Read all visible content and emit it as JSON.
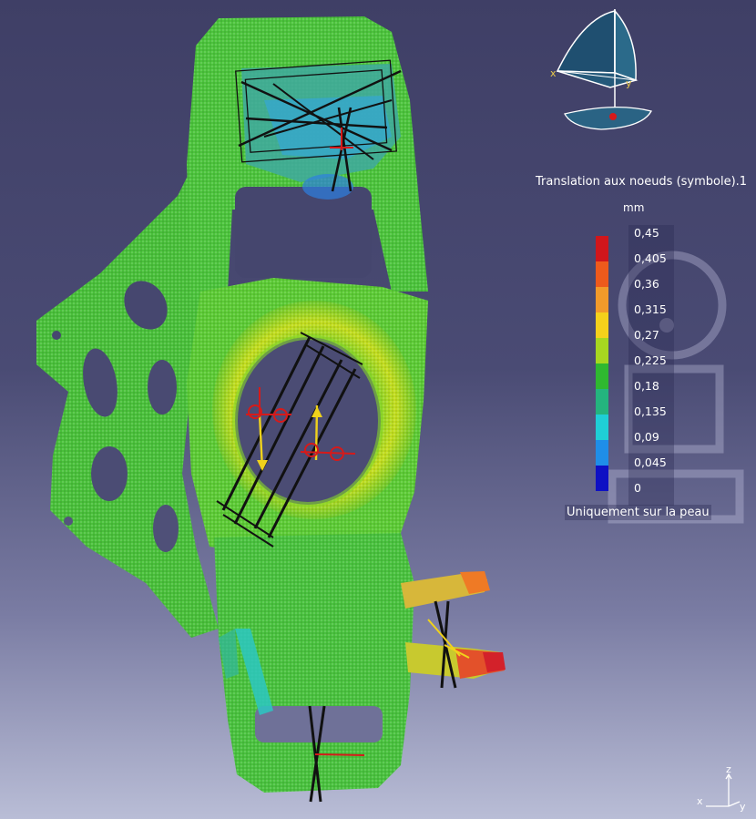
{
  "legend": {
    "title": "Translation aux noeuds (symbole).1",
    "unit": "mm",
    "ticks": [
      "0,45",
      "0,405",
      "0,36",
      "0,315",
      "0,27",
      "0,225",
      "0,18",
      "0,135",
      "0,09",
      "0,045",
      "0"
    ],
    "colors": [
      "#d0161b",
      "#ee5a1c",
      "#f29a2a",
      "#f5d11b",
      "#a7d720",
      "#2fb830",
      "#24b47e",
      "#1fcfd6",
      "#1f8ee8",
      "#0e10c4"
    ],
    "footer": "Uniquement sur la peau"
  },
  "compass": {
    "x_label": "x",
    "y_label": "y"
  },
  "triad": {
    "x_label": "x",
    "y_label": "y",
    "z_label": "z"
  }
}
